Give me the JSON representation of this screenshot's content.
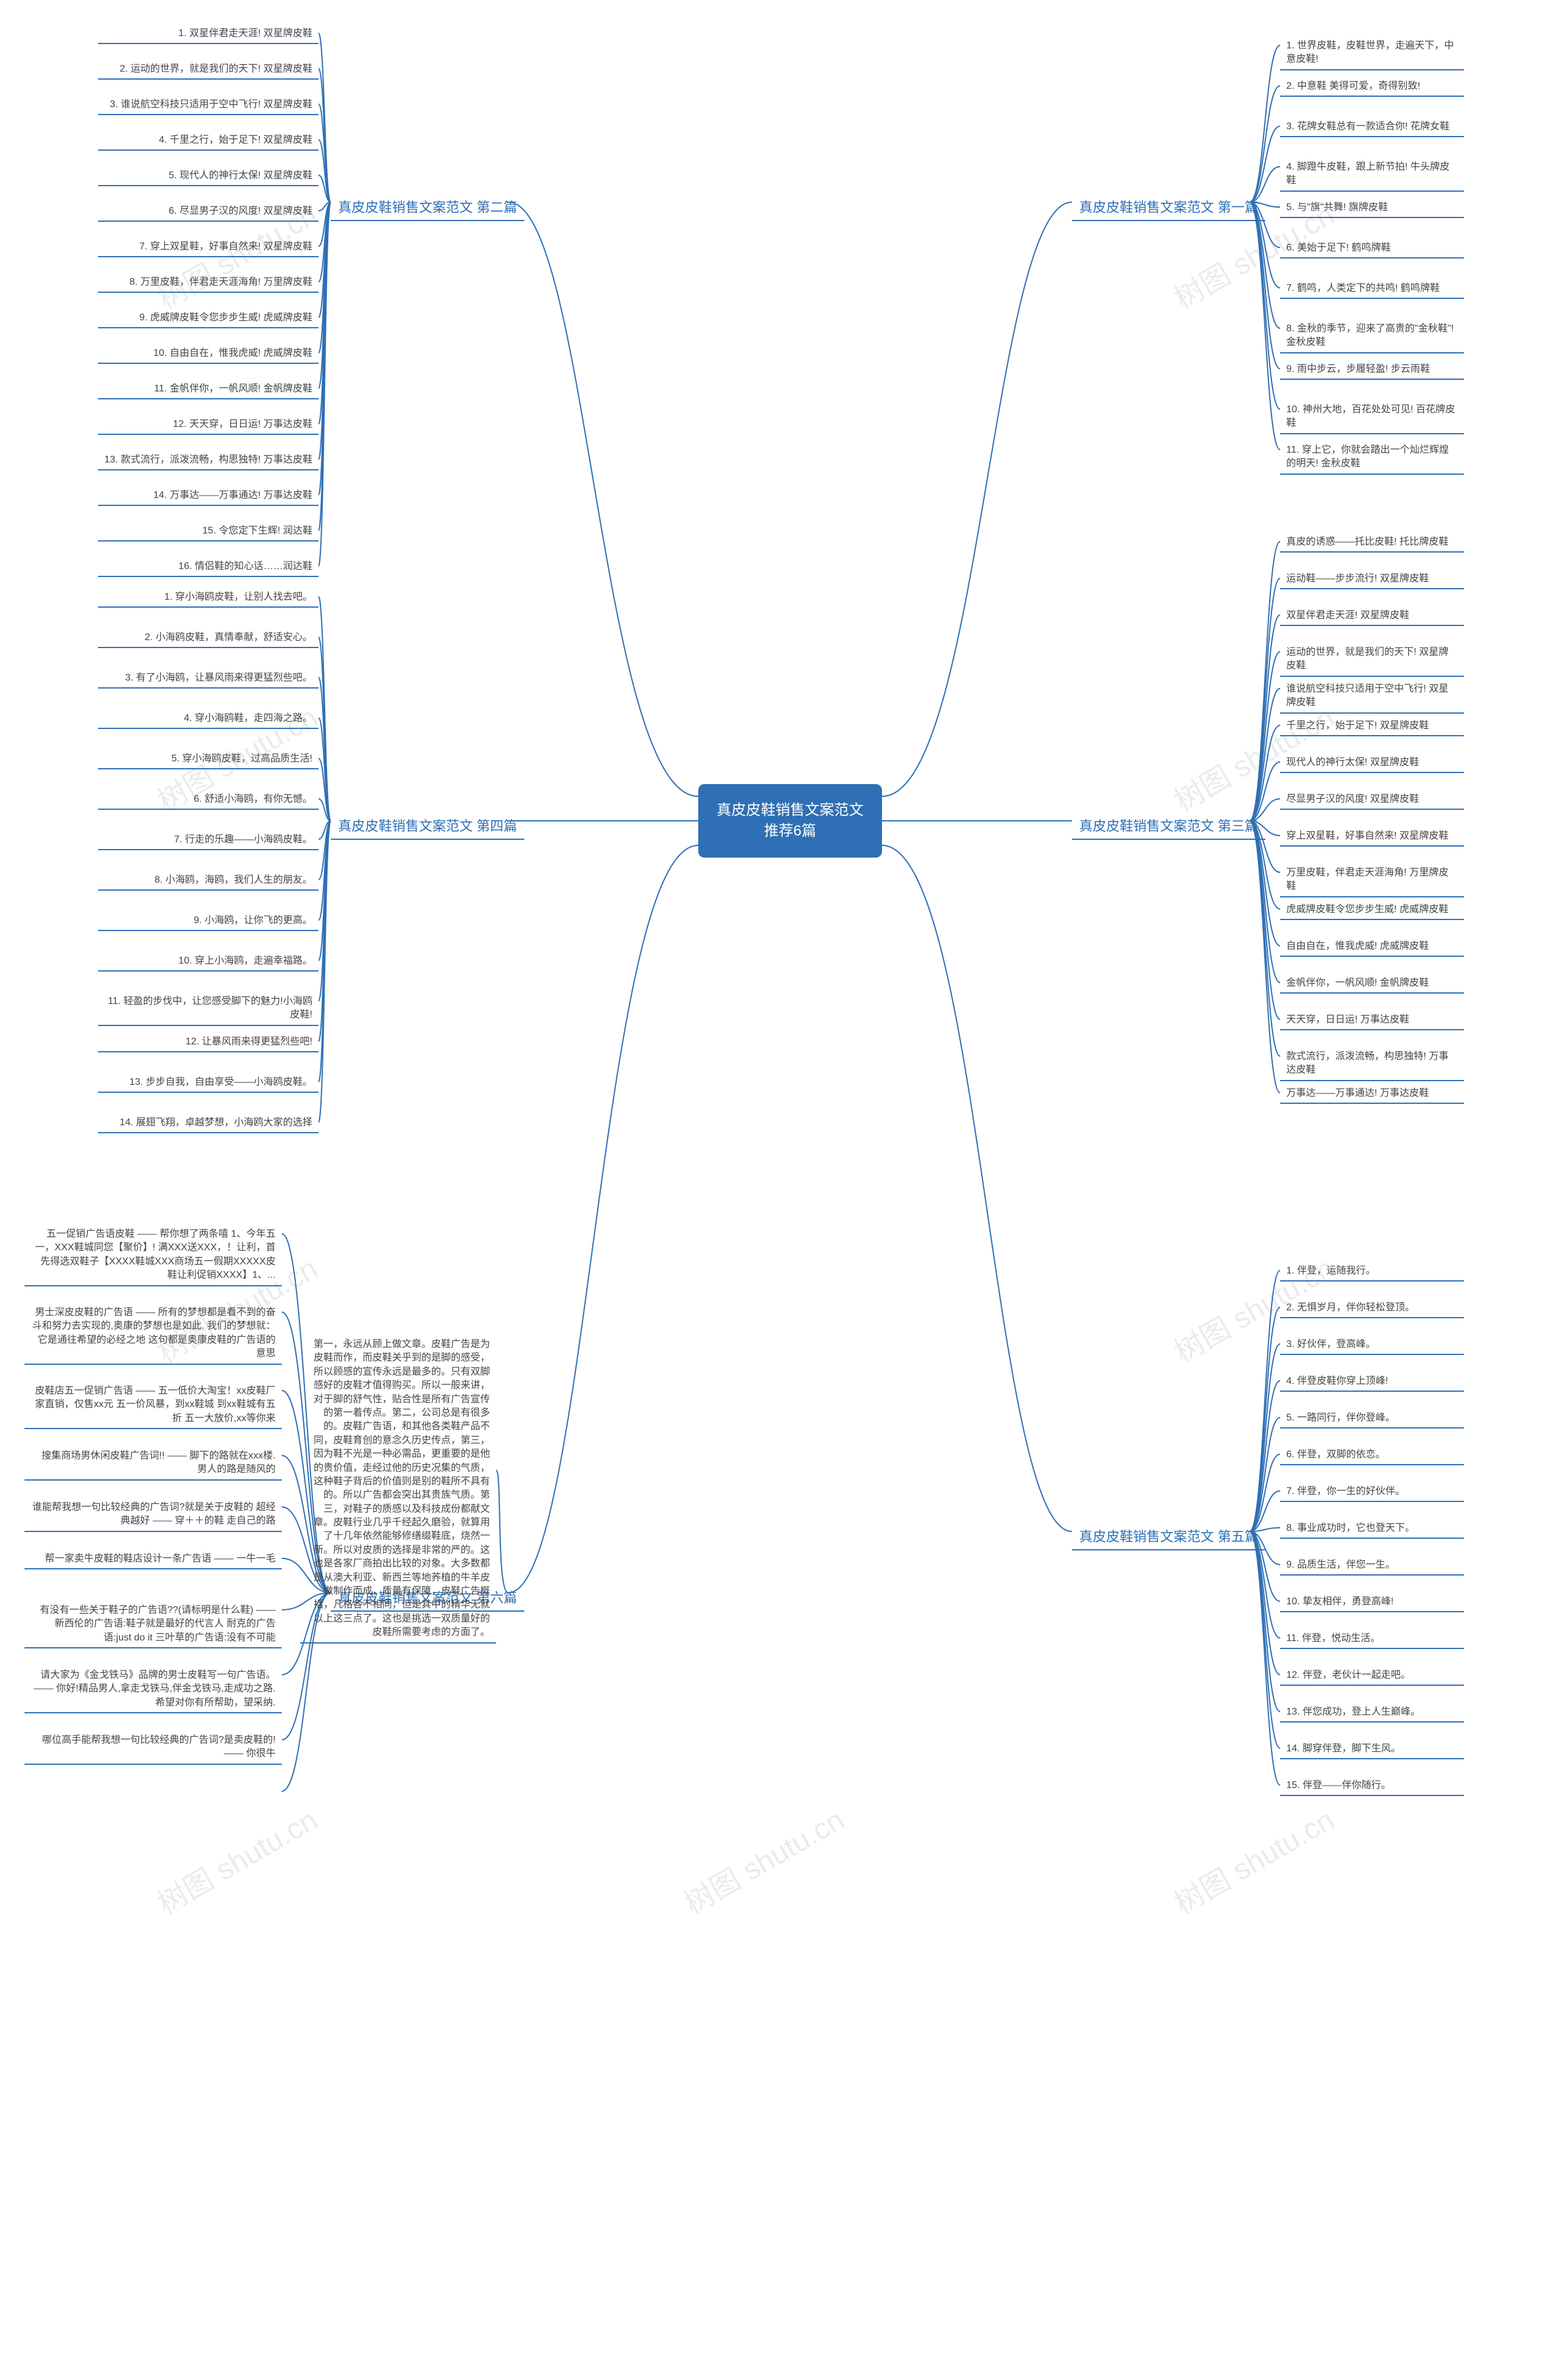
{
  "colors": {
    "primary": "#2f6fb5",
    "text": "#444444",
    "bg": "#ffffff",
    "watermark": "#666666"
  },
  "watermark_text": "树图 shutu.cn",
  "root": {
    "title": "真皮皮鞋销售文案范文推荐6篇"
  },
  "branches": [
    {
      "side": "right",
      "title": "真皮皮鞋销售文案范文 第一篇",
      "items": [
        "1. 世界皮鞋，皮鞋世界，走遍天下，中意皮鞋!",
        "2. 中意鞋 美得可爱，奇得别致!",
        "3. 花牌女鞋总有一款适合你! 花牌女鞋",
        "4. 脚蹬牛皮鞋，跟上新节拍! 牛头牌皮鞋",
        "5. 与\"旗\"共舞! 旗牌皮鞋",
        "6. 美始于足下! 鹤鸣牌鞋",
        "7. 鹤鸣，人类定下的共鸣! 鹤鸣牌鞋",
        "8. 金秋的季节，迎来了高贵的\"金秋鞋\"! 金秋皮鞋",
        "9. 雨中步云，步履轻盈! 步云雨鞋",
        "10. 神州大地，百花处处可见! 百花牌皮鞋",
        "11. 穿上它，你就会踏出一个灿烂辉煌的明天! 金秋皮鞋"
      ]
    },
    {
      "side": "left",
      "title": "真皮皮鞋销售文案范文 第二篇",
      "items": [
        "1. 双星伴君走天涯! 双星牌皮鞋",
        "2. 运动的世界，就是我们的天下! 双星牌皮鞋",
        "3. 谁说航空科技只适用于空中飞行! 双星牌皮鞋",
        "4. 千里之行，始于足下! 双星牌皮鞋",
        "5. 现代人的神行太保! 双星牌皮鞋",
        "6. 尽显男子汉的风度! 双星牌皮鞋",
        "7. 穿上双星鞋，好事自然来! 双星牌皮鞋",
        "8. 万里皮鞋，伴君走天涯海角! 万里牌皮鞋",
        "9. 虎威牌皮鞋令您步步生威! 虎威牌皮鞋",
        "10. 自由自在，惟我虎威! 虎威牌皮鞋",
        "11. 金帆伴你，一帆风顺! 金帆牌皮鞋",
        "12. 天天穿，日日运! 万事达皮鞋",
        "13. 款式流行，派泼流畅，构思独特! 万事达皮鞋",
        "14. 万事达——万事通达! 万事达皮鞋",
        "15. 令您定下生辉! 润达鞋",
        "16. 情侣鞋的知心话……润达鞋"
      ]
    },
    {
      "side": "right",
      "title": "真皮皮鞋销售文案范文 第三篇",
      "items": [
        "真皮的诱惑——托比皮鞋! 托比牌皮鞋",
        "运动鞋——步步流行! 双星牌皮鞋",
        "双星伴君走天涯! 双星牌皮鞋",
        "运动的世界，就是我们的天下! 双星牌皮鞋",
        "谁说航空科技只适用于空中飞行! 双星牌皮鞋",
        "千里之行，始于足下! 双星牌皮鞋",
        "现代人的神行太保! 双星牌皮鞋",
        "尽显男子汉的风度! 双星牌皮鞋",
        "穿上双星鞋，好事自然来! 双星牌皮鞋",
        "万里皮鞋，伴君走天涯海角! 万里牌皮鞋",
        "虎威牌皮鞋令您步步生威! 虎威牌皮鞋",
        "自由自在，惟我虎威! 虎威牌皮鞋",
        "金帆伴你，一帆风顺! 金帆牌皮鞋",
        "天天穿，日日运! 万事达皮鞋",
        "款式流行，派泼流畅，构思独特! 万事达皮鞋",
        "万事达——万事通达! 万事达皮鞋"
      ]
    },
    {
      "side": "left",
      "title": "真皮皮鞋销售文案范文 第四篇",
      "items": [
        "1. 穿小海鸥皮鞋，让别人找去吧。",
        "2. 小海鸥皮鞋，真情奉献，舒适安心。",
        "3. 有了小海鸥，让暴风雨来得更猛烈些吧。",
        "4. 穿小海鸥鞋，走四海之路。",
        "5. 穿小海鸥皮鞋，过高品质生活!",
        "6. 舒适小海鸥，有你无憾。",
        "7. 行走的乐趣——小海鸥皮鞋。",
        "8. 小海鸥，海鸥，我们人生的朋友。",
        "9. 小海鸥，让你飞的更高。",
        "10. 穿上小海鸥，走遍幸福路。",
        "11. 轻盈的步伐中，让您感受脚下的魅力!小海鸥皮鞋!",
        "12. 让暴风雨来得更猛烈些吧!",
        "13. 步步自我，自由享受——小海鸥皮鞋。",
        "14. 展翅飞翔，卓越梦想，小海鸥大家的选择"
      ]
    },
    {
      "side": "right",
      "title": "真皮皮鞋销售文案范文 第五篇",
      "items": [
        "1. 伴登，运随我行。",
        "2. 无惧岁月，伴你轻松登顶。",
        "3. 好伙伴，登高峰。",
        "4. 伴登皮鞋你穿上顶峰!",
        "5. 一路同行，伴你登峰。",
        "6. 伴登，双脚的依恋。",
        "7. 伴登，你一生的好伙伴。",
        "8. 事业成功时，它也登天下。",
        "9. 品质生活，伴您一生。",
        "10. 挚友相伴，勇登高峰!",
        "11. 伴登，悦动生活。",
        "12. 伴登，老伙计一起走吧。",
        "13. 伴您成功，登上人生巅峰。",
        "14. 脚穿伴登，脚下生风。",
        "15. 伴登——伴你随行。"
      ]
    },
    {
      "side": "left",
      "title": "真皮皮鞋销售文案范文 第六篇",
      "items": [
        "五一促销广告语皮鞋 —— 帮你想了两条嘻 1、今年五一，XXX鞋城同您【聚价】! 满XXX送XXX，！让利，首先得选双鞋子【XXXX鞋城XXX商场五一假期XXXXX皮鞋让利促销XXXX】1、...",
        "男士深皮皮鞋的广告语 —— 所有的梦想都是看不到的奋斗和努力去实现的,奥康的梦想也是如此. 我们的梦想就：它是通往希望的必经之地 这句都是奥康皮鞋的广告语的意思",
        "皮鞋店五一促销广告语 —— 五一低价大淘宝！xx皮鞋厂家直销，仅售xx元 五一价风暴，到xx鞋城 到xx鞋城有五折 五一大放价,xx等你来",
        "搜集商场男休闲皮鞋广告词!! —— 脚下的路就在xxx楼. 男人的路是随风的",
        "谁能帮我想一句比较经典的广告词?就是关于皮鞋的 超经典越好 —— 穿＋＋的鞋 走自己的路",
        "帮一家卖牛皮鞋的鞋店设计一条广告语 —— 一牛一毛",
        "有没有一些关于鞋子的广告语??(请标明是什么鞋) —— 新西伦的广告语:鞋子就是最好的代言人 耐克的广告语:just do it 三叶草的广告语:没有不可能",
        "请大家为《金戈铁马》品牌的男士皮鞋写一句广告语。—— 你好!精品男人,拿走戈铁马,伴金戈铁马,走成功之路. 希望对你有所帮助，望采纳.",
        "哪位高手能帮我想一句比较经典的广告词?是卖皮鞋的! —— 你很牛",
        "第一，永远从顾上做文章。皮鞋广告是为皮鞋而作，而皮鞋关乎到的是脚的感受，所以顾感的宣传永远是最多的。只有双脚感好的皮鞋才值得购买。所以一般来讲，对于脚的舒气性，贴合性是所有广告宣传的第一着传点。第二，公司总是有很多的。皮鞋广告语，和其他各类鞋产品不同，皮鞋育创的意念久历史传点，第三，因为鞋不光是一种必需品，更重要的是他的贵价值，走经过他的历史况集的气质，这种鞋子背后的价值则是别的鞋所不具有的。所以广告都会突出其贵族气质。第三，对鞋子的质感以及科技成份都献文章。皮鞋行业几乎千经起久磨验，就算用了十几年依然能够修缮缀鞋底，烧然一新。所以对皮质的选择是非常的严的。这也是各家厂商拍出比较的对象。大多数都是从澳大利亚、新西兰等地荞植的牛羊皮做制作而成，质量有保障，皮鞋广告概括，凡格各不相同，但是其中的精华无就以上这三点了。这也是挑选一双质量好的皮鞋所需要考虑的方面了。"
      ]
    }
  ]
}
